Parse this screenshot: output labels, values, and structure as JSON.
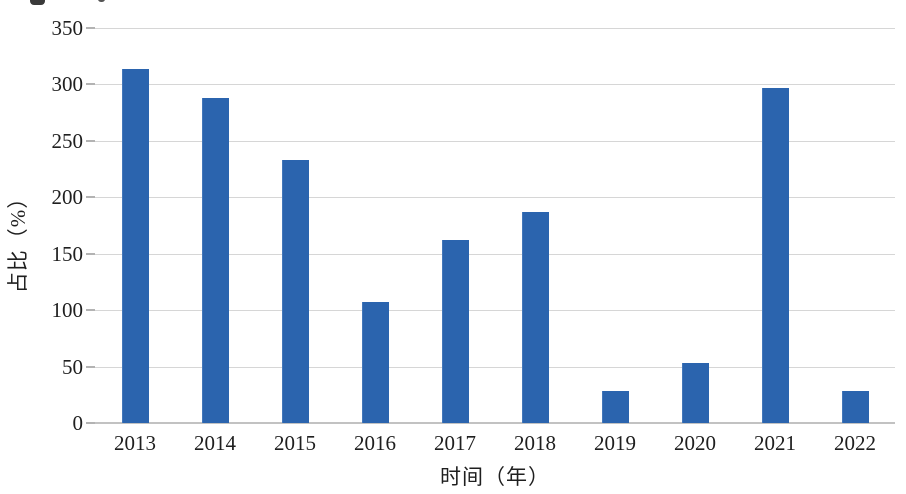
{
  "chart_data": {
    "type": "bar",
    "title": "",
    "categories": [
      "2013",
      "2014",
      "2015",
      "2016",
      "2017",
      "2018",
      "2019",
      "2020",
      "2021",
      "2022"
    ],
    "values": [
      314,
      288,
      233,
      107,
      162,
      187,
      28,
      53,
      297,
      28
    ],
    "xlabel": "时间（年）",
    "ylabel": "占比（%）",
    "ylim": [
      0,
      350
    ],
    "yticks": [
      0,
      50,
      100,
      150,
      200,
      250,
      300,
      350
    ],
    "grid": true,
    "legend_position": "none",
    "bar_color": "#2b64ae",
    "gridline_color": "#d6d6d6",
    "baseline_color": "#c2c2c2",
    "text_color": "#1f1f1f"
  }
}
